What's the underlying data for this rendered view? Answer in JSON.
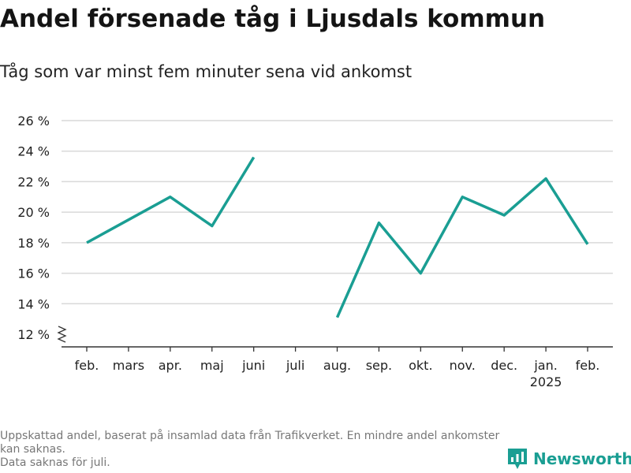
{
  "header": {
    "title": "Andel försenade tåg i Ljusdals kommun",
    "subtitle": "Tåg som var minst fem minuter sena vid ankomst"
  },
  "footnote": {
    "lines": [
      "Uppskattad andel, baserat på insamlad data från Trafikverket. En mindre andel ankomster kan saknas.",
      "Data saknas för juli."
    ]
  },
  "brand": {
    "name": "Newsworthy",
    "icon": "newsworthy-logo-icon",
    "color": "#1a9e93"
  },
  "chart_data": {
    "type": "line",
    "title": "Andel försenade tåg i Ljusdals kommun",
    "subtitle": "Tåg som var minst fem minuter sena vid ankomst",
    "categories": [
      "feb.",
      "mars",
      "apr.",
      "maj",
      "juni",
      "juli",
      "aug.",
      "sep.",
      "okt.",
      "nov.",
      "dec.",
      "jan.",
      "feb."
    ],
    "year_label": {
      "category_index": 11,
      "text": "2025"
    },
    "series": [
      {
        "values": [
          18.0,
          19.5,
          21.0,
          19.1,
          23.6,
          null,
          13.1,
          19.3,
          16.0,
          21.0,
          19.8,
          22.2,
          17.9
        ],
        "color": "#1a9e93"
      }
    ],
    "ylim": [
      12,
      26
    ],
    "yticks": [
      12,
      14,
      16,
      18,
      20,
      22,
      24,
      26
    ],
    "ytick_labels": [
      "12 %",
      "14 %",
      "16 %",
      "18 %",
      "20 %",
      "22 %",
      "24 %",
      "26 %"
    ],
    "y_axis_break": true,
    "grid": true,
    "legend": "none"
  }
}
